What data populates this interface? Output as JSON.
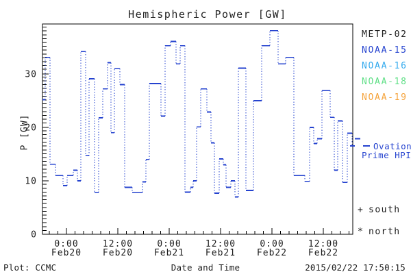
{
  "title": "Hemispheric Power [GW]",
  "colors": {
    "axis": "#000000",
    "text": "#1c1c1c",
    "line": "#2543cf",
    "metp02": "#1c1c1c",
    "noaa15": "#2543cf",
    "noaa16": "#33aaee",
    "noaa18": "#5fdf86",
    "noaa19": "#f5a33b"
  },
  "legend": {
    "items": [
      {
        "label": "METP-02",
        "color": "#1c1c1c"
      },
      {
        "label": "NOAA-15",
        "color": "#2543cf"
      },
      {
        "label": "NOAA-16",
        "color": "#33aaee"
      },
      {
        "label": "NOAA-18",
        "color": "#5fdf86"
      },
      {
        "label": "NOAA-19",
        "color": "#f5a33b"
      }
    ]
  },
  "annotations": {
    "ovation_line1": "Ovation",
    "ovation_line2": "Prime HPI",
    "south_marker": "+",
    "south_label": "south",
    "north_marker": "*",
    "north_label": "north"
  },
  "footer": {
    "plot_credit": "Plot: CCMC",
    "xlabel": "Date and Time",
    "timestamp": "2015/02/22 17:50:15"
  },
  "chart_data": {
    "type": "step-line",
    "title": "Hemispheric Power [GW]",
    "xlabel": "Date and Time",
    "ylabel": "P [GW]",
    "series_name": "Ovation Prime HPI",
    "ylim": [
      0,
      39
    ],
    "y_major_ticks": [
      0,
      10,
      20,
      30
    ],
    "x_span_hours": 72.5,
    "x_minor_step_hours": 2,
    "x_ticks": [
      {
        "time": "0:00",
        "date": "Feb20",
        "hour": 5.6
      },
      {
        "time": "12:00",
        "date": "Feb20",
        "hour": 17.6
      },
      {
        "time": "0:00",
        "date": "Feb21",
        "hour": 29.6
      },
      {
        "time": "12:00",
        "date": "Feb21",
        "hour": 41.6
      },
      {
        "time": "0:00",
        "date": "Feb22",
        "hour": 53.6
      },
      {
        "time": "12:00",
        "date": "Feb22",
        "hour": 65.6
      }
    ],
    "steps_hours_gw": [
      [
        0.0,
        0.64,
        25.2
      ],
      [
        0.64,
        1.76,
        33.1
      ],
      [
        1.76,
        3.04,
        13.1
      ],
      [
        3.04,
        4.8,
        11.0
      ],
      [
        4.8,
        5.76,
        9.1
      ],
      [
        5.76,
        7.2,
        11.0
      ],
      [
        7.2,
        8.16,
        12.0
      ],
      [
        8.16,
        8.96,
        10.0
      ],
      [
        8.96,
        10.08,
        34.2
      ],
      [
        10.08,
        10.88,
        14.7
      ],
      [
        10.88,
        12.16,
        29.1
      ],
      [
        12.16,
        13.12,
        7.8
      ],
      [
        13.12,
        14.08,
        21.8
      ],
      [
        14.08,
        15.2,
        27.2
      ],
      [
        15.2,
        16.0,
        32.1
      ],
      [
        16.0,
        16.8,
        19.0
      ],
      [
        16.8,
        18.08,
        31.0
      ],
      [
        18.08,
        19.2,
        28.0
      ],
      [
        19.2,
        20.96,
        8.8
      ],
      [
        20.96,
        23.36,
        7.8
      ],
      [
        23.36,
        24.16,
        9.8
      ],
      [
        24.16,
        24.96,
        14.0
      ],
      [
        24.96,
        27.68,
        28.2
      ],
      [
        27.68,
        28.64,
        22.1
      ],
      [
        28.64,
        29.92,
        35.3
      ],
      [
        29.92,
        31.2,
        36.1
      ],
      [
        31.2,
        32.16,
        31.9
      ],
      [
        32.16,
        33.28,
        35.3
      ],
      [
        33.28,
        34.56,
        7.9
      ],
      [
        34.56,
        35.2,
        8.8
      ],
      [
        35.2,
        36.0,
        10.0
      ],
      [
        36.0,
        36.96,
        20.1
      ],
      [
        36.96,
        38.4,
        27.2
      ],
      [
        38.4,
        39.36,
        22.9
      ],
      [
        39.36,
        40.16,
        17.1
      ],
      [
        40.16,
        41.28,
        7.7
      ],
      [
        41.28,
        42.24,
        14.1
      ],
      [
        42.24,
        42.88,
        13.0
      ],
      [
        42.88,
        44.0,
        8.8
      ],
      [
        44.0,
        44.96,
        10.0
      ],
      [
        44.96,
        45.76,
        7.0
      ],
      [
        45.76,
        47.52,
        31.1
      ],
      [
        47.52,
        49.28,
        8.2
      ],
      [
        49.28,
        51.2,
        25.0
      ],
      [
        51.2,
        53.12,
        35.3
      ],
      [
        53.12,
        55.04,
        38.1
      ],
      [
        55.04,
        56.8,
        31.9
      ],
      [
        56.8,
        58.72,
        33.1
      ],
      [
        58.72,
        61.28,
        11.0
      ],
      [
        61.28,
        62.4,
        9.9
      ],
      [
        62.4,
        63.36,
        20.0
      ],
      [
        63.36,
        64.16,
        17.0
      ],
      [
        64.16,
        65.28,
        17.9
      ],
      [
        65.28,
        67.2,
        26.9
      ],
      [
        67.2,
        68.16,
        21.9
      ],
      [
        68.16,
        68.96,
        12.0
      ],
      [
        68.96,
        70.08,
        21.2
      ],
      [
        70.08,
        71.2,
        9.7
      ],
      [
        71.2,
        72.32,
        18.9
      ]
    ],
    "tail_gw": 16.5,
    "outside_dash_gw": 17.9
  }
}
